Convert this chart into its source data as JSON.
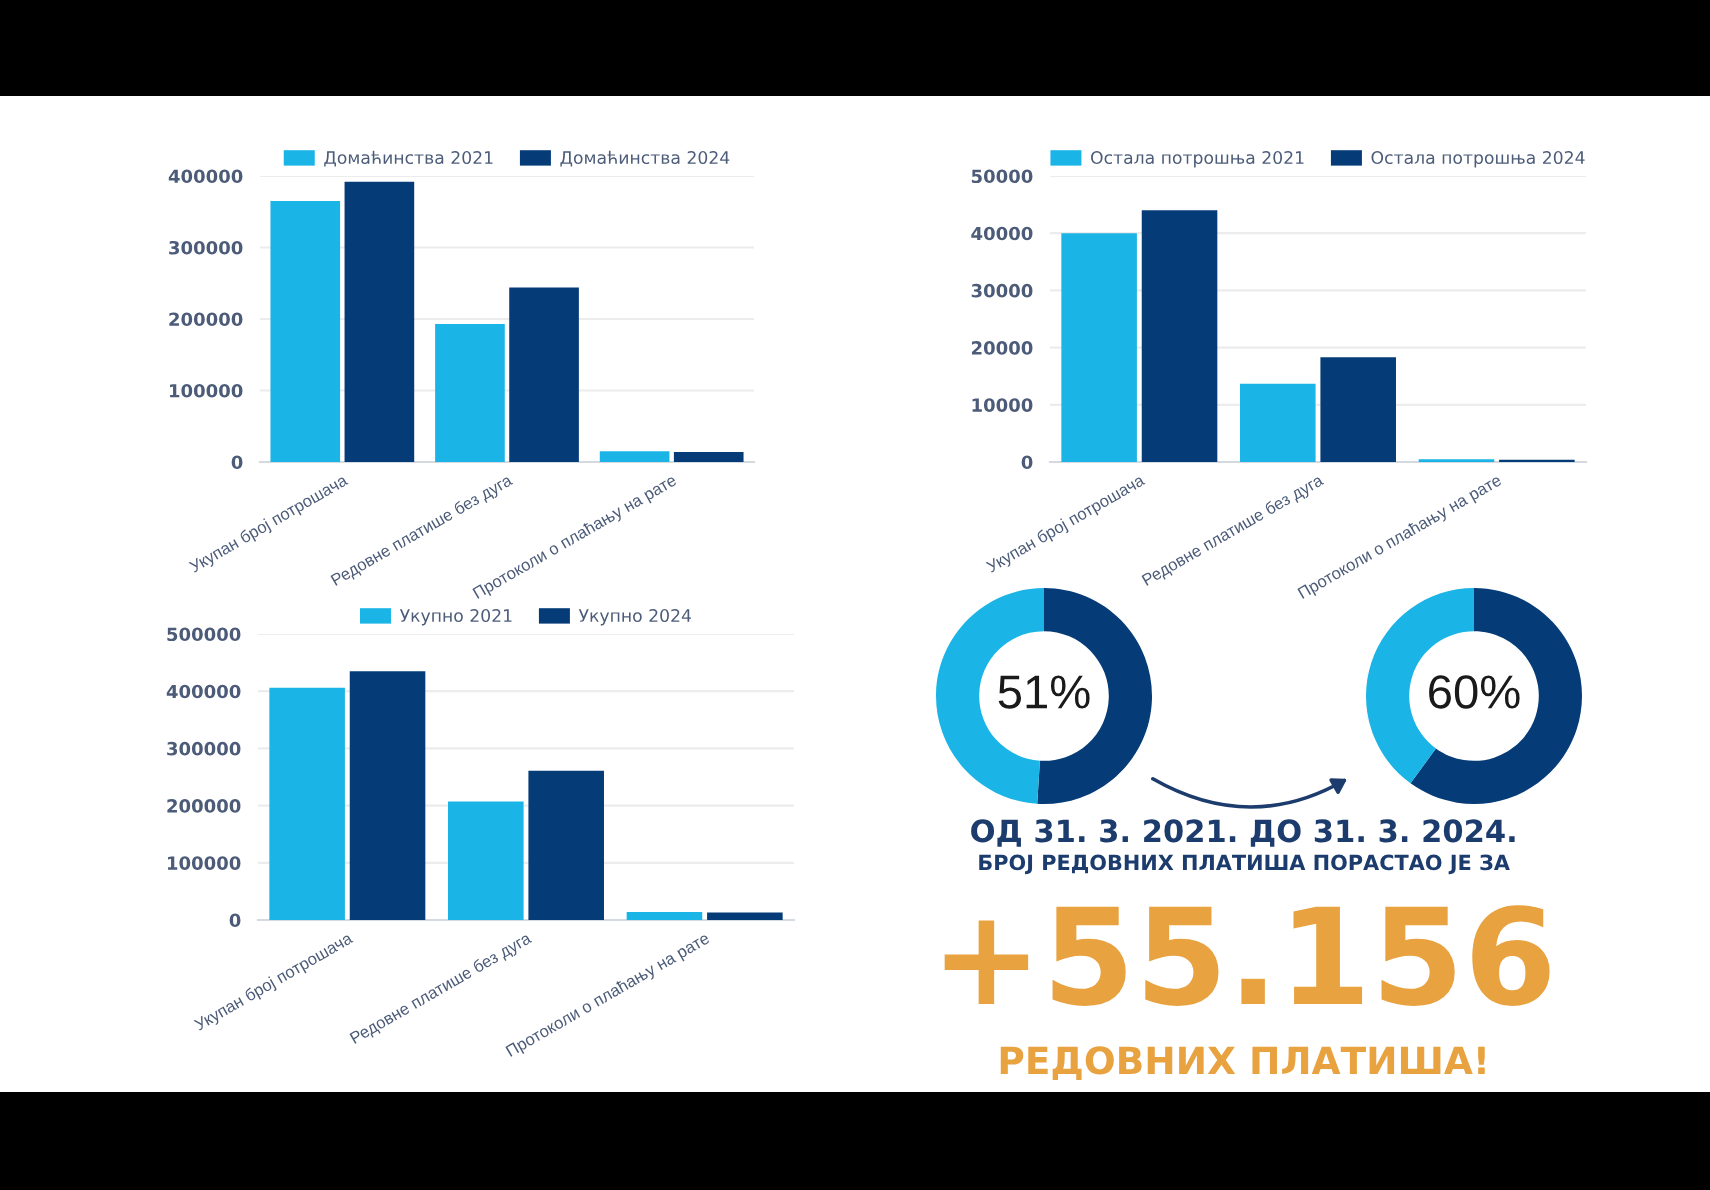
{
  "chart_data": [
    {
      "type": "bar",
      "categories": [
        "Укупан број потрошача",
        "Редовне платише без дуга",
        "Протоколи о плаћању на рате"
      ],
      "series": [
        {
          "name": "Домаћинства 2021",
          "color": "#1bb4e6",
          "values": [
            365000,
            193000,
            15000
          ]
        },
        {
          "name": "Домаћинства 2024",
          "color": "#053c78",
          "values": [
            392000,
            244000,
            14000
          ]
        }
      ],
      "ylim": [
        0,
        400000
      ],
      "yticks": [
        0,
        100000,
        200000,
        300000,
        400000
      ],
      "grid": "y",
      "legend": "top"
    },
    {
      "type": "bar",
      "categories": [
        "Укупан број потрошача",
        "Редовне платише без дуга",
        "Протоколи о плаћању на рате"
      ],
      "series": [
        {
          "name": "Остала потрошња 2021",
          "color": "#1bb4e6",
          "values": [
            40000,
            13700,
            500
          ]
        },
        {
          "name": "Остала потрошња 2024",
          "color": "#053c78",
          "values": [
            44000,
            18300,
            400
          ]
        }
      ],
      "ylim": [
        0,
        50000
      ],
      "yticks": [
        0,
        10000,
        20000,
        30000,
        40000,
        50000
      ],
      "grid": "y",
      "legend": "top"
    },
    {
      "type": "bar",
      "categories": [
        "Укупан број потрошача",
        "Редовне платише без дуга",
        "Протоколи о плаћању на рате"
      ],
      "series": [
        {
          "name": "Укупно 2021",
          "color": "#1bb4e6",
          "values": [
            406000,
            207000,
            14000
          ]
        },
        {
          "name": "Укупно 2024",
          "color": "#053c78",
          "values": [
            435000,
            261000,
            13000
          ]
        }
      ],
      "ylim": [
        0,
        500000
      ],
      "yticks": [
        0,
        100000,
        200000,
        300000,
        400000,
        500000
      ],
      "grid": "y",
      "legend": "top"
    },
    {
      "type": "donut",
      "categories": [
        null,
        null
      ],
      "values": [
        51,
        49
      ],
      "colors": [
        "#053c78",
        "#1bb4e6"
      ],
      "value_labels": [
        "51%",
        null
      ]
    },
    {
      "type": "donut",
      "categories": [
        null,
        null
      ],
      "values": [
        60,
        40
      ],
      "colors": [
        "#053c78",
        "#1bb4e6"
      ],
      "value_labels": [
        "60%",
        null
      ]
    },
    {
      "type": "other",
      "annotations": [
        "ОД 31. 3. 2021. ДО 31. 3. 2024.",
        "БРОЈ РЕДОВНИХ ПЛАТИША ПОРАСТАО ЈЕ ЗА",
        "+55.156",
        "РЕДОВНИХ ПЛАТИША!"
      ]
    }
  ]
}
